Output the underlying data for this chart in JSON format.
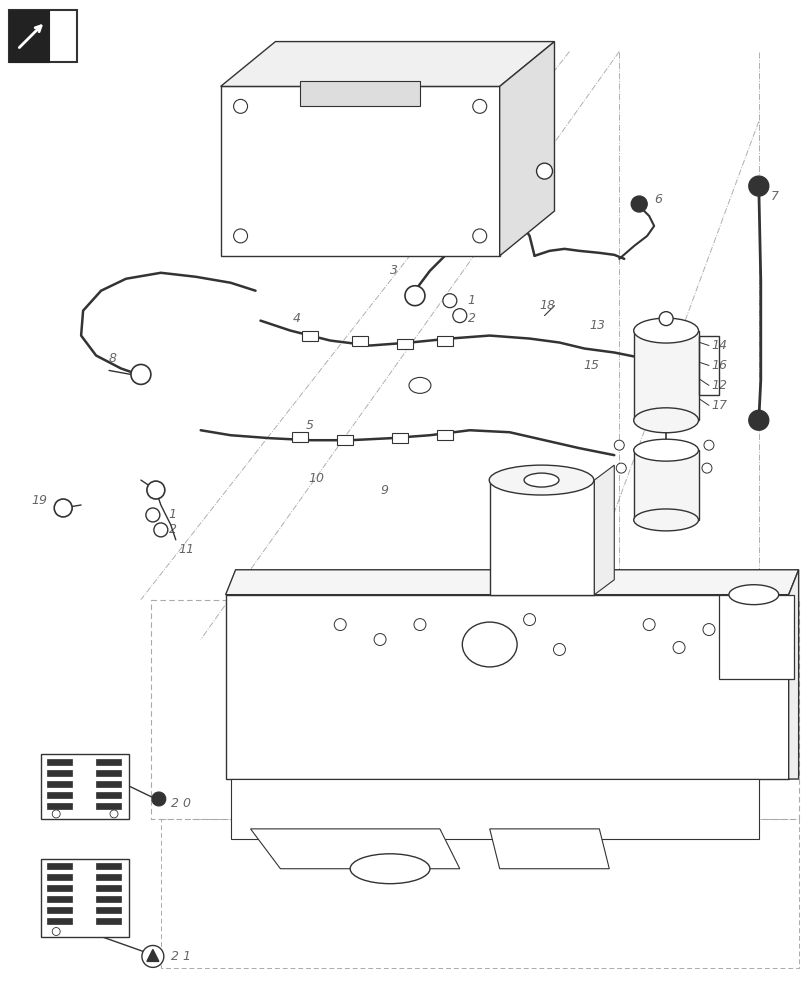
{
  "bg_color": "#ffffff",
  "line_color": "#333333",
  "label_color": "#666666",
  "figsize": [
    8.12,
    10.0
  ],
  "dpi": 100
}
